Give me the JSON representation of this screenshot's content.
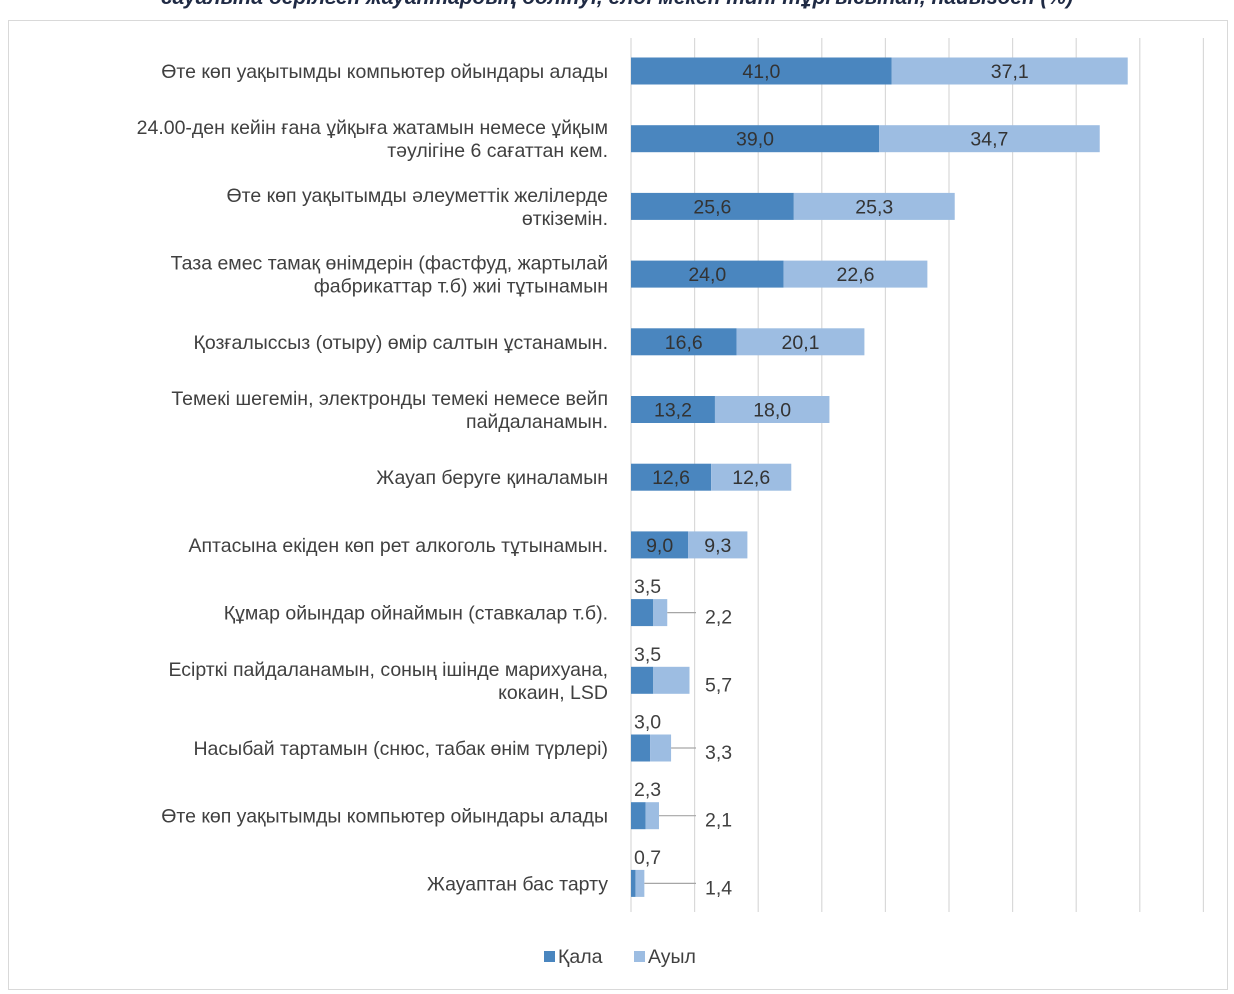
{
  "chart_data": {
    "type": "bar",
    "stacked": true,
    "orientation": "horizontal",
    "title": "сауалына берілген жауаптардың бөлінуі, елді мекен типі тұрғысынан, пайызбен (%)",
    "categories": [
      "Өте көп уақытымды компьютер  ойындары алады",
      "24.00-ден кейін ғана ұйқыға жатамын немесе ұйқым тәулігіне 6 сағаттан кем.",
      "Өте көп уақытымды әлеуметтік желілерде өткіземін.",
      "Таза емес тамақ өнімдерін (фастфуд, жартылай фабрикаттар т.б) жиі тұтынамын",
      "Қозғалыссыз (отыру) өмір салтын ұстанамын.",
      "Темекі шегемін, электронды темекі немесе вейп пайдаланамын.",
      "Жауап беруге қиналамын",
      "Аптасына екіден көп рет алкоголь тұтынамын.",
      "Құмар ойындар ойнаймын (ставкалар т.б).",
      "Есірткі пайдаланамын, соның ішінде марихуана, кокаин, LSD",
      "Насыбай тартамын (снюс, табак өнім түрлері)",
      "Өте көп уақытымды компьютер  ойындары алады",
      "Жауаптан бас тарту"
    ],
    "category_lines": [
      [
        "Өте көп уақытымды компьютер  ойындары алады"
      ],
      [
        "24.00-ден кейін ғана ұйқыға жатамын немесе ұйқым",
        "тәулігіне 6 сағаттан кем."
      ],
      [
        "Өте көп уақытымды әлеуметтік желілерде",
        "өткіземін."
      ],
      [
        "Таза емес тамақ өнімдерін (фастфуд, жартылай",
        "фабрикаттар т.б) жиі тұтынамын"
      ],
      [
        "Қозғалыссыз (отыру) өмір салтын ұстанамын."
      ],
      [
        "Темекі шегемін, электронды темекі немесе вейп",
        "пайдаланамын."
      ],
      [
        "Жауап беруге қиналамын"
      ],
      [
        "Аптасына екіден көп рет алкоголь тұтынамын."
      ],
      [
        "Құмар ойындар ойнаймын (ставкалар т.б)."
      ],
      [
        "Есірткі пайдаланамын, соның ішінде марихуана,",
        "кокаин, LSD"
      ],
      [
        "Насыбай тартамын (снюс, табак өнім түрлері)"
      ],
      [
        "Өте көп уақытымды компьютер  ойындары алады"
      ],
      [
        "Жауаптан бас тарту"
      ]
    ],
    "series": [
      {
        "name": "Қала",
        "color": "#4a86bf",
        "values": [
          41.0,
          39.0,
          25.6,
          24.0,
          16.6,
          13.2,
          12.6,
          9.0,
          3.5,
          3.5,
          3.0,
          2.3,
          0.7
        ],
        "labels": [
          "41,0",
          "39,0",
          "25,6",
          "24,0",
          "16,6",
          "13,2",
          "12,6",
          "9,0",
          "3,5",
          "3,5",
          "3,0",
          "2,3",
          "0,7"
        ]
      },
      {
        "name": "Ауыл",
        "color": "#9dbde2",
        "values": [
          37.1,
          34.7,
          25.3,
          22.6,
          20.1,
          18.0,
          12.6,
          9.3,
          2.2,
          5.7,
          3.3,
          2.1,
          1.4
        ],
        "labels": [
          "37,1",
          "34,7",
          "25,3",
          "22,6",
          "20,1",
          "18,0",
          "12,6",
          "9,3",
          "2,2",
          "5,7",
          "3,3",
          "2,1",
          "1,4"
        ]
      }
    ],
    "xlim": [
      0,
      90
    ],
    "grid": true,
    "legend_position": "bottom"
  }
}
